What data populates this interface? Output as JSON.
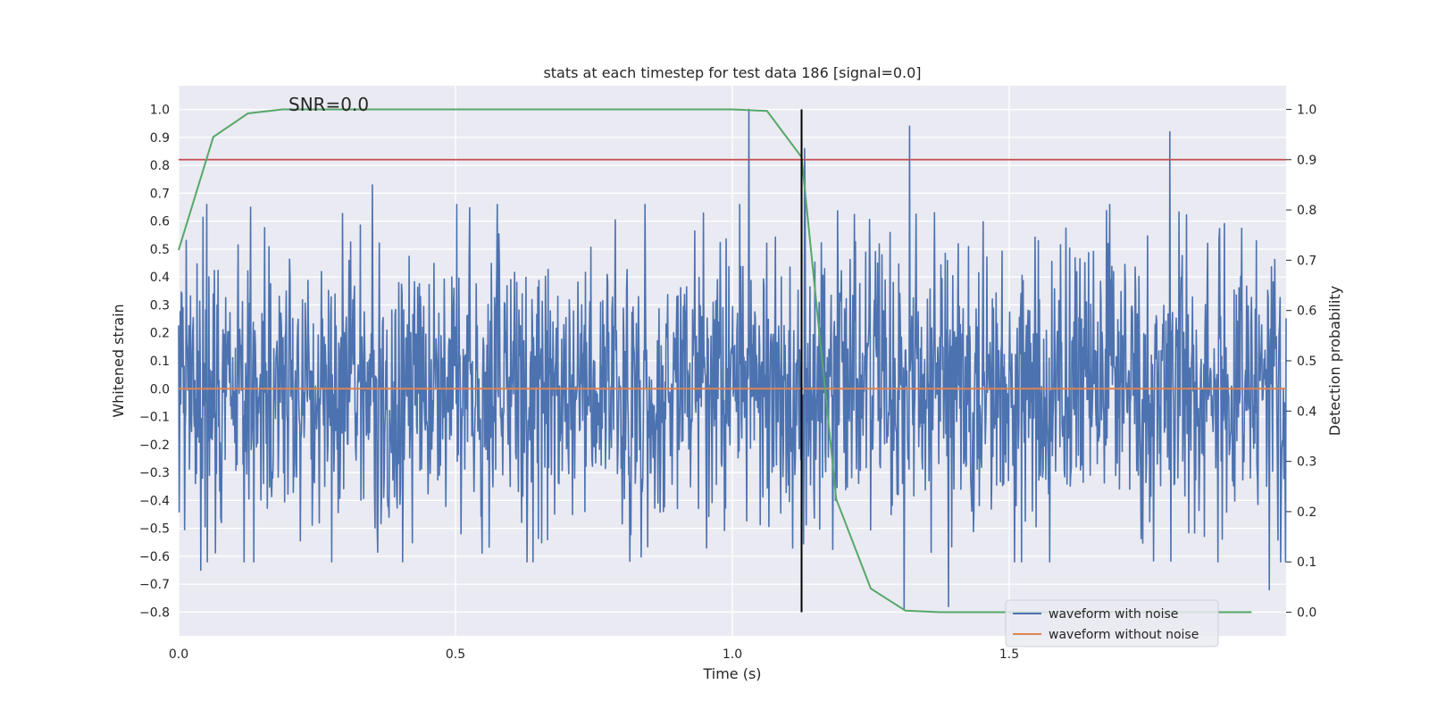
{
  "chart_data": {
    "type": "line",
    "title": "stats at each timestep for test data 186 [signal=0.0]",
    "xlabel": "Time (s)",
    "ylabel": "Whitened strain",
    "y2label": "Detection probability",
    "annotation": "SNR=0.0",
    "xlim": [
      0.0,
      2.0
    ],
    "ylim": [
      -0.885,
      1.085
    ],
    "y2lim": [
      -0.047,
      1.047
    ],
    "xticks": [
      0.0,
      0.5,
      1.0,
      1.5
    ],
    "xtick_labels": [
      "0.0",
      "0.5",
      "1.0",
      "1.5"
    ],
    "yticks": [
      -0.8,
      -0.7,
      -0.6,
      -0.5,
      -0.4,
      -0.3,
      -0.2,
      -0.1,
      0.0,
      0.1,
      0.2,
      0.3,
      0.4,
      0.5,
      0.6,
      0.7,
      0.8,
      0.9,
      1.0
    ],
    "ytick_labels": [
      "−0.8",
      "−0.7",
      "−0.6",
      "−0.5",
      "−0.4",
      "−0.3",
      "−0.2",
      "−0.1",
      "0.0",
      "0.1",
      "0.2",
      "0.3",
      "0.4",
      "0.5",
      "0.6",
      "0.7",
      "0.8",
      "0.9",
      "1.0"
    ],
    "y2ticks": [
      0.0,
      0.1,
      0.2,
      0.3,
      0.4,
      0.5,
      0.6,
      0.7,
      0.8,
      0.9,
      1.0
    ],
    "y2tick_labels": [
      "0.0",
      "0.1",
      "0.2",
      "0.3",
      "0.4",
      "0.5",
      "0.6",
      "0.7",
      "0.8",
      "0.9",
      "1.0"
    ],
    "grid": true,
    "legend_position": "lower-right",
    "colors": {
      "background": "#eaeaf2",
      "noise": "#4c72b0",
      "clean": "#dd8452",
      "probability": "#55a868",
      "threshold": "#c44e52",
      "marker": "#000000",
      "grid": "#ffffff"
    },
    "series": [
      {
        "name": "waveform with noise",
        "axis": "left",
        "style": "noise-trace",
        "x_range": [
          0.0,
          2.0
        ],
        "sample_count": 2048,
        "amplitude_range": [
          -0.78,
          1.0
        ],
        "typical_std": 0.25,
        "notable_peaks": [
          {
            "x": 0.35,
            "y": 0.73
          },
          {
            "x": 1.03,
            "y": 1.0
          },
          {
            "x": 1.13,
            "y": 0.86
          },
          {
            "x": 1.32,
            "y": 0.94
          },
          {
            "x": 1.79,
            "y": 0.92
          },
          {
            "x": 1.97,
            "y": 0.71
          },
          {
            "x": 1.31,
            "y": -0.79
          },
          {
            "x": 1.39,
            "y": -0.78
          },
          {
            "x": 0.04,
            "y": -0.65
          },
          {
            "x": 1.97,
            "y": -0.72
          }
        ]
      },
      {
        "name": "waveform without noise",
        "axis": "left",
        "x": [
          0.0,
          2.0
        ],
        "y": [
          0.0,
          0.0
        ]
      },
      {
        "name": "detection probability",
        "axis": "right",
        "x": [
          0.0,
          0.0625,
          0.125,
          0.1875,
          0.25,
          0.3125,
          0.375,
          1.0,
          1.0625,
          1.125,
          1.1875,
          1.25,
          1.3125,
          1.375,
          1.4375,
          1.9375
        ],
        "y": [
          0.72,
          0.945,
          0.992,
          1.0,
          1.0,
          1.0,
          1.0,
          1.0,
          0.997,
          0.905,
          0.225,
          0.047,
          0.003,
          0.0,
          0.0,
          0.0
        ]
      },
      {
        "name": "threshold",
        "axis": "right",
        "x": [
          0.0,
          2.0
        ],
        "y": [
          0.9,
          0.9
        ]
      },
      {
        "name": "time marker",
        "axis": "right",
        "x": [
          1.125,
          1.125
        ],
        "y": [
          0.0,
          1.0
        ]
      }
    ],
    "legend": [
      {
        "label": "waveform with noise",
        "color": "#4c72b0"
      },
      {
        "label": "waveform without noise",
        "color": "#dd8452"
      }
    ]
  }
}
